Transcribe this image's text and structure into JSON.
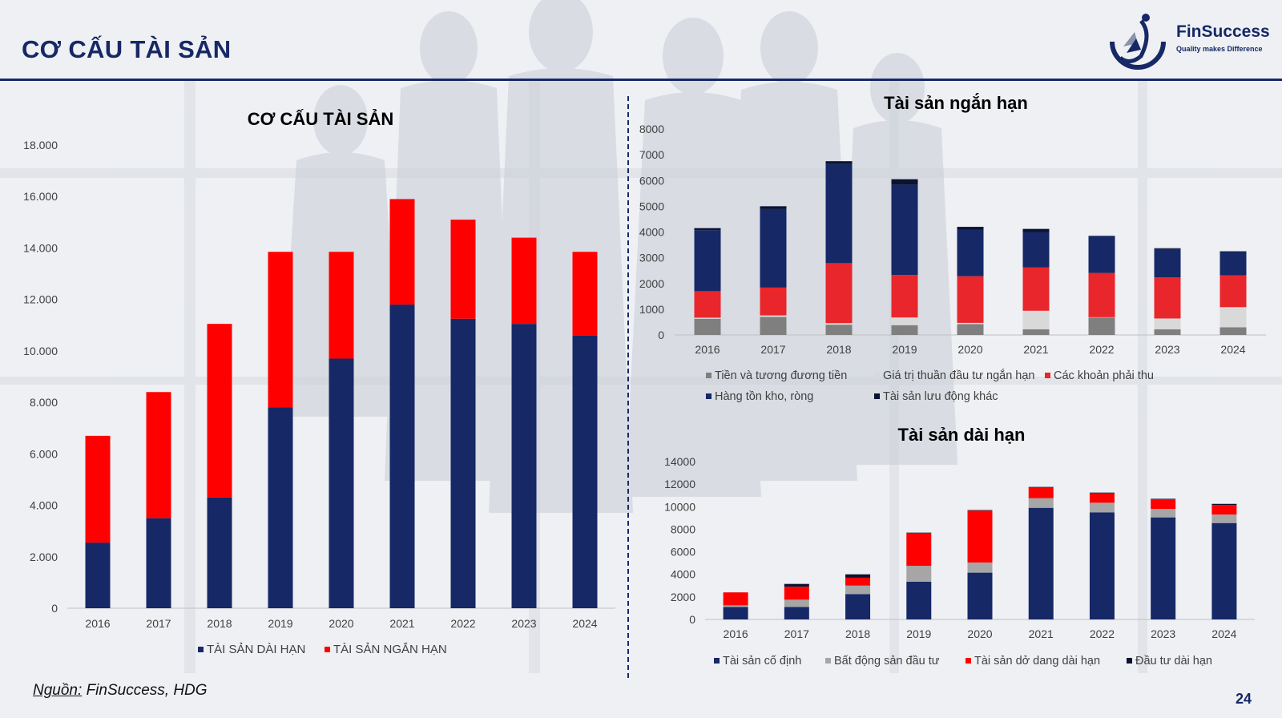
{
  "slide": {
    "title": "CƠ CẤU TÀI SẢN",
    "brand": "FinSuccess",
    "tagline": "Quality makes Difference",
    "source_prefix": "Nguồn:",
    "source_text": "FinSuccess, HDG",
    "page_number": "24"
  },
  "colors": {
    "navy": "#162866",
    "red": "#fe0000",
    "red_soft": "#e8262b",
    "gray": "#7f7f7f",
    "light_gray": "#d9d9d9",
    "black_navy": "#0b1330"
  },
  "chart_data": [
    {
      "type": "bar",
      "stacked": true,
      "title": "CƠ CẤU TÀI SẢN",
      "categories": [
        "2016",
        "2017",
        "2018",
        "2019",
        "2020",
        "2021",
        "2022",
        "2023",
        "2024"
      ],
      "ylim": [
        0,
        18000
      ],
      "yticks": [
        "0",
        "2.000",
        "4.000",
        "6.000",
        "8.000",
        "10.000",
        "12.000",
        "14.000",
        "16.000",
        "18.000"
      ],
      "grid": false,
      "legend": "bottom",
      "series": [
        {
          "name": "TÀI SẢN DÀI HẠN",
          "color": "#162866",
          "values": [
            2550,
            3500,
            4300,
            7800,
            9700,
            11800,
            11250,
            11050,
            10600
          ]
        },
        {
          "name": "TÀI SẢN NGẮN HẠN",
          "color": "#fe0000",
          "values": [
            4150,
            4900,
            6750,
            6050,
            4150,
            4100,
            3850,
            3350,
            3250
          ]
        }
      ]
    },
    {
      "type": "bar",
      "stacked": true,
      "title": "Tài sản ngắn hạn",
      "categories": [
        "2016",
        "2017",
        "2018",
        "2019",
        "2020",
        "2021",
        "2022",
        "2023",
        "2024"
      ],
      "ylim": [
        0,
        8000
      ],
      "yticks": [
        "0",
        "1000",
        "2000",
        "3000",
        "4000",
        "5000",
        "6000",
        "7000",
        "8000"
      ],
      "grid": false,
      "legend": "bottom",
      "series": [
        {
          "name": "Tiền và tương đương tiền",
          "color": "#7f7f7f",
          "values": [
            630,
            700,
            400,
            380,
            420,
            220,
            680,
            220,
            300
          ]
        },
        {
          "name": "Giá trị thuần đầu tư ngắn hạn",
          "color": "#d9d9d9",
          "values": [
            40,
            60,
            60,
            300,
            50,
            720,
            10,
            420,
            780
          ]
        },
        {
          "name": "Các khoản phải thu",
          "color": "#e8262b",
          "values": [
            1030,
            1080,
            2330,
            1650,
            1810,
            1680,
            1720,
            1600,
            1240
          ]
        },
        {
          "name": "Hàng tồn kho, ròng",
          "color": "#162866",
          "values": [
            2370,
            3050,
            3850,
            3500,
            1800,
            1380,
            1420,
            1100,
            900
          ]
        },
        {
          "name": "Tài sản lưu động khác",
          "color": "#0b1330",
          "values": [
            80,
            110,
            110,
            220,
            120,
            120,
            20,
            30,
            30
          ]
        }
      ]
    },
    {
      "type": "bar",
      "stacked": true,
      "title": "Tài sản dài hạn",
      "categories": [
        "2016",
        "2017",
        "2018",
        "2019",
        "2020",
        "2021",
        "2022",
        "2023",
        "2024"
      ],
      "ylim": [
        0,
        14000
      ],
      "yticks": [
        "0",
        "2000",
        "4000",
        "6000",
        "8000",
        "10000",
        "12000",
        "14000"
      ],
      "grid": false,
      "legend": "bottom",
      "series": [
        {
          "name": "Tài sản cố định",
          "color": "#162866",
          "values": [
            1100,
            1100,
            2250,
            3350,
            4150,
            9900,
            9500,
            9050,
            8550
          ]
        },
        {
          "name": "Bất động sản đầu tư",
          "color": "#a6a6a6",
          "values": [
            150,
            650,
            750,
            1400,
            900,
            850,
            850,
            750,
            750
          ]
        },
        {
          "name": "Tài sản dở dang dài hạn",
          "color": "#fe0000",
          "values": [
            1150,
            1150,
            700,
            2900,
            4600,
            950,
            850,
            850,
            850
          ]
        },
        {
          "name": "Đầu tư dài hạn",
          "color": "#0b1330",
          "values": [
            0,
            250,
            300,
            50,
            50,
            50,
            50,
            50,
            100
          ]
        }
      ]
    }
  ]
}
